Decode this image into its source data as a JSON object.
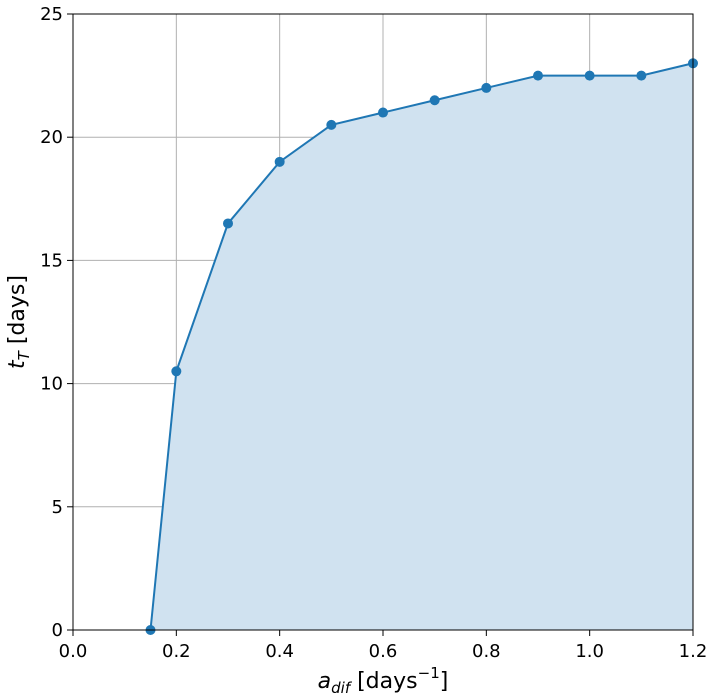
{
  "chart_data": {
    "type": "area",
    "xlabel": {
      "base": "a",
      "sub": "dif",
      "rest": " [days",
      "sup": "−1",
      "close": "]"
    },
    "ylabel": {
      "base": "t",
      "sub": "T",
      "rest": " [days]"
    },
    "xlim": [
      0.0,
      1.2
    ],
    "ylim": [
      0,
      25
    ],
    "xticks": [
      0.0,
      0.2,
      0.4,
      0.6,
      0.8,
      1.0,
      1.2
    ],
    "xtick_labels": [
      "0.0",
      "0.2",
      "0.4",
      "0.6",
      "0.8",
      "1.0",
      "1.2"
    ],
    "yticks": [
      0,
      5,
      10,
      15,
      20,
      25
    ],
    "ytick_labels": [
      "0",
      "5",
      "10",
      "15",
      "20",
      "25"
    ],
    "grid": true,
    "colors": {
      "line": "#1f77b4",
      "fill": "#d0e2f0",
      "grid": "#b0b0b0"
    },
    "series": [
      {
        "x": [
          0.15,
          0.2,
          0.3,
          0.4,
          0.5,
          0.6,
          0.7,
          0.8,
          0.9,
          1.0,
          1.1,
          1.2
        ],
        "values": [
          0,
          10.5,
          16.5,
          19,
          20.5,
          21,
          21.5,
          22,
          22.5,
          22.5,
          22.5,
          23
        ]
      }
    ]
  }
}
